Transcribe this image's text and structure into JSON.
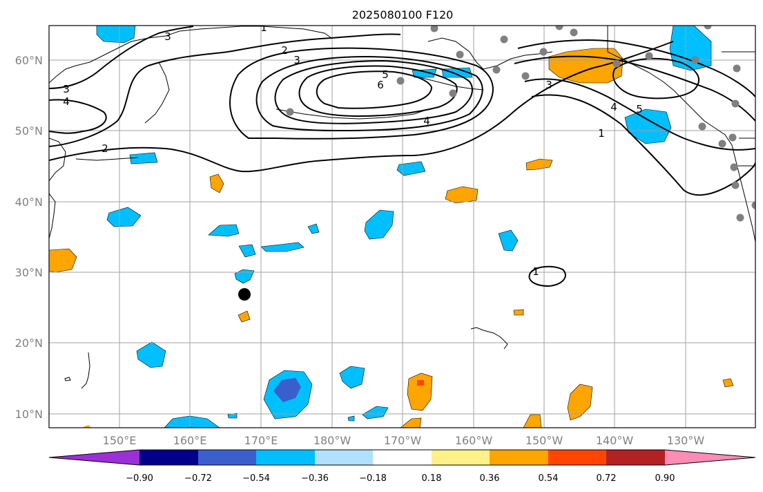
{
  "map": {
    "title": "2025080100 F120",
    "lon_labels": [
      "150°E",
      "160°E",
      "170°E",
      "180°W",
      "170°W",
      "160°W",
      "150°W",
      "140°W",
      "130°W"
    ],
    "lat_labels": [
      "60°N",
      "50°N",
      "40°N",
      "30°N",
      "20°N",
      "10°N"
    ],
    "contour_labels": [
      "1",
      "2",
      "3",
      "3",
      "4",
      "2",
      "3",
      "5",
      "6",
      "4",
      "3",
      "4",
      "5",
      "1",
      "1"
    ],
    "colorbar": {
      "tick_labels": [
        "−0.90",
        "−0.72",
        "−0.54",
        "−0.36",
        "−0.18",
        "0.18",
        "0.36",
        "0.54",
        "0.72",
        "0.90"
      ],
      "colors": [
        "#9b30d8",
        "#00008b",
        "#3a5fcd",
        "#00bfff",
        "#b0e2ff",
        "#ffffff",
        "#fff08a",
        "#ffa500",
        "#ff4500",
        "#b22222",
        "#ff8cb4"
      ]
    },
    "colors": {
      "negative_anomaly": "#00bfff",
      "negative_strong": "#3a5fcd",
      "positive_anomaly": "#ffa500",
      "positive_strong": "#ff4500",
      "station_marker": "#808080",
      "center_marker": "#000000"
    }
  }
}
